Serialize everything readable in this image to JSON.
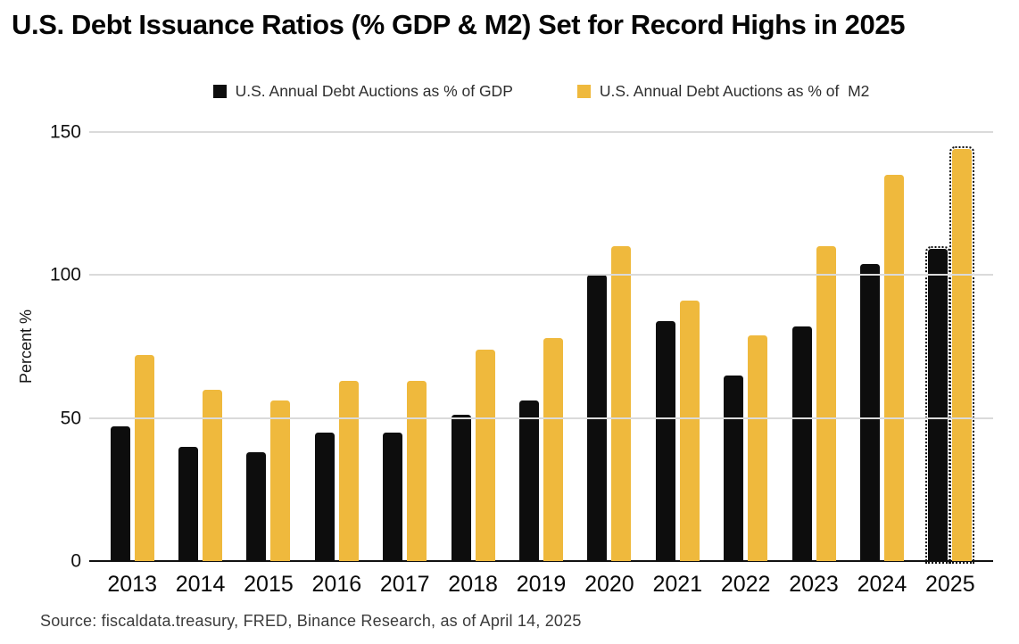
{
  "title": "U.S. Debt Issuance Ratios (% GDP & M2) Set for Record Highs in 2025",
  "legend": [
    {
      "label": "U.S. Annual Debt Auctions as % of GDP",
      "color": "#0d0d0d"
    },
    {
      "label": "U.S. Annual Debt Auctions as % of  M2",
      "color": "#efb93d"
    }
  ],
  "footer": {
    "source": "Source: fiscaldata.treasury, FRED, Binance Research, as of April 14, 2025"
  },
  "colors": {
    "gdp_series": "#0d0d0d",
    "m2_series": "#efb93d",
    "gridline": "#dadada",
    "axis": "#111111"
  },
  "chart_data": {
    "type": "bar",
    "title": "U.S. Debt Issuance Ratios (% GDP & M2) Set for Record Highs in 2025",
    "xlabel": "",
    "ylabel": "Percent %",
    "ylim": [
      0,
      150
    ],
    "yticks": [
      0,
      50,
      100,
      150
    ],
    "grid": true,
    "legend_position": "top",
    "categories": [
      "2013",
      "2014",
      "2015",
      "2016",
      "2017",
      "2018",
      "2019",
      "2020",
      "2021",
      "2022",
      "2023",
      "2024",
      "2025"
    ],
    "series": [
      {
        "name": "U.S. Annual Debt Auctions as % of GDP",
        "color": "#0d0d0d",
        "values": [
          47,
          40,
          38,
          45,
          45,
          51,
          56,
          100,
          84,
          65,
          82,
          104,
          109
        ]
      },
      {
        "name": "U.S. Annual Debt Auctions as % of  M2",
        "color": "#efb93d",
        "values": [
          72,
          60,
          56,
          63,
          63,
          74,
          78,
          110,
          91,
          79,
          110,
          135,
          144
        ]
      }
    ],
    "projected_categories": [
      "2025"
    ],
    "annotation": "2025 bars are drawn with dotted outlines (projected values)"
  }
}
